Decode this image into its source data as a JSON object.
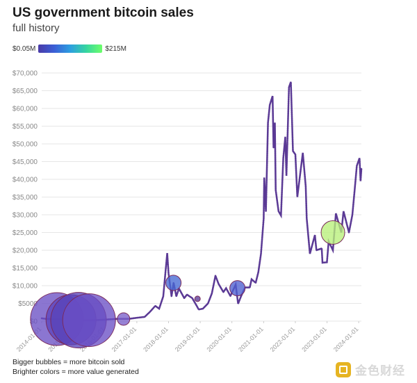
{
  "header": {
    "title": "US government bitcoin sales",
    "subtitle": "full history"
  },
  "legend": {
    "min_label": "$0.05M",
    "max_label": "$215M",
    "colors": [
      "#4a3aa8",
      "#3b5fd6",
      "#2d9ee0",
      "#36d5a0",
      "#6dff6a"
    ]
  },
  "notes": {
    "line1": "Bigger bubbles = more bitcoin sold",
    "line2": "Brighter colors = more value generated"
  },
  "watermark": {
    "text": "金色财经",
    "icon": "jinse-logo-icon"
  },
  "chart_data": {
    "type": "scatter",
    "title": "US government bitcoin sales",
    "subtitle": "full history",
    "xlabel": "",
    "ylabel": "",
    "xlim": [
      "2014-01-01",
      "2024-02-01"
    ],
    "ylim": [
      0,
      70000
    ],
    "grid": true,
    "y_ticks": [
      0,
      5000,
      10000,
      15000,
      20000,
      25000,
      30000,
      35000,
      40000,
      45000,
      50000,
      55000,
      60000,
      65000,
      70000
    ],
    "y_tick_labels": [
      "$0",
      "$5000",
      "$10,000",
      "$15,000",
      "$20,000",
      "$25,000",
      "$30,000",
      "$35,000",
      "$40,000",
      "$45,000",
      "$50,000",
      "$55,000",
      "$60,000",
      "$65,000",
      "$70,000"
    ],
    "x_tick_labels": [
      "2014-01-01",
      "2015-01-01",
      "2016-01-01",
      "2017-01-01",
      "2018-01-01",
      "2019-01-01",
      "2020-01-01",
      "2021-01-01",
      "2022-01-01",
      "2023-01-01",
      "2024-01-01"
    ],
    "price_series": {
      "name": "BTC price",
      "color": "#5b3a95",
      "points": [
        [
          "2014-01-01",
          800
        ],
        [
          "2014-03-01",
          600
        ],
        [
          "2014-06-01",
          600
        ],
        [
          "2014-09-01",
          450
        ],
        [
          "2015-01-01",
          250
        ],
        [
          "2015-06-01",
          250
        ],
        [
          "2015-11-01",
          350
        ],
        [
          "2016-01-01",
          430
        ],
        [
          "2016-06-01",
          650
        ],
        [
          "2016-10-01",
          650
        ],
        [
          "2017-01-01",
          950
        ],
        [
          "2017-04-01",
          1200
        ],
        [
          "2017-06-01",
          2600
        ],
        [
          "2017-08-01",
          4300
        ],
        [
          "2017-09-15",
          3500
        ],
        [
          "2017-11-01",
          7000
        ],
        [
          "2017-12-17",
          19200
        ],
        [
          "2018-01-01",
          13500
        ],
        [
          "2018-02-05",
          7000
        ],
        [
          "2018-03-01",
          10800
        ],
        [
          "2018-04-01",
          7000
        ],
        [
          "2018-05-01",
          9200
        ],
        [
          "2018-07-01",
          6500
        ],
        [
          "2018-08-01",
          7500
        ],
        [
          "2018-10-01",
          6500
        ],
        [
          "2018-11-20",
          4400
        ],
        [
          "2018-12-15",
          3300
        ],
        [
          "2019-02-01",
          3500
        ],
        [
          "2019-04-01",
          5000
        ],
        [
          "2019-05-15",
          7800
        ],
        [
          "2019-06-26",
          12800
        ],
        [
          "2019-08-01",
          10500
        ],
        [
          "2019-09-25",
          8200
        ],
        [
          "2019-10-26",
          9300
        ],
        [
          "2019-12-15",
          7100
        ],
        [
          "2020-02-14",
          10300
        ],
        [
          "2020-03-13",
          4900
        ],
        [
          "2020-04-15",
          7000
        ],
        [
          "2020-06-01",
          9500
        ],
        [
          "2020-07-25",
          9500
        ],
        [
          "2020-08-15",
          11800
        ],
        [
          "2020-10-01",
          10800
        ],
        [
          "2020-11-01",
          13800
        ],
        [
          "2020-12-01",
          19000
        ],
        [
          "2021-01-01",
          29000
        ],
        [
          "2021-01-08",
          40500
        ],
        [
          "2021-01-27",
          31000
        ],
        [
          "2021-02-20",
          56000
        ],
        [
          "2021-03-13",
          61000
        ],
        [
          "2021-04-14",
          63500
        ],
        [
          "2021-04-25",
          49000
        ],
        [
          "2021-05-10",
          56000
        ],
        [
          "2021-05-20",
          37000
        ],
        [
          "2021-06-22",
          31000
        ],
        [
          "2021-07-20",
          29800
        ],
        [
          "2021-08-15",
          46000
        ],
        [
          "2021-09-07",
          52000
        ],
        [
          "2021-09-20",
          41000
        ],
        [
          "2021-10-20",
          66000
        ],
        [
          "2021-11-10",
          67500
        ],
        [
          "2021-12-04",
          48000
        ],
        [
          "2022-01-01",
          47000
        ],
        [
          "2022-01-24",
          35000
        ],
        [
          "2022-03-28",
          47500
        ],
        [
          "2022-05-01",
          38000
        ],
        [
          "2022-05-12",
          29000
        ],
        [
          "2022-06-18",
          19000
        ],
        [
          "2022-08-14",
          24300
        ],
        [
          "2022-09-01",
          20000
        ],
        [
          "2022-11-01",
          20500
        ],
        [
          "2022-11-10",
          16500
        ],
        [
          "2022-12-31",
          16600
        ],
        [
          "2023-01-20",
          22500
        ],
        [
          "2023-03-10",
          20000
        ],
        [
          "2023-04-13",
          30400
        ],
        [
          "2023-06-15",
          25000
        ],
        [
          "2023-07-10",
          31000
        ],
        [
          "2023-09-11",
          25000
        ],
        [
          "2023-10-20",
          30000
        ],
        [
          "2023-11-15",
          37000
        ],
        [
          "2023-12-10",
          43800
        ],
        [
          "2024-01-10",
          46000
        ],
        [
          "2024-01-22",
          39500
        ],
        [
          "2024-02-01",
          43000
        ]
      ]
    },
    "sales": [
      {
        "date": "2014-06-25",
        "price": 580,
        "radius": 38,
        "color": "#6a4fc4"
      },
      {
        "date": "2014-12-05",
        "price": 380,
        "radius": 36,
        "color": "#5d45bd"
      },
      {
        "date": "2015-03-01",
        "price": 270,
        "radius": 40,
        "color": "#5a44ba"
      },
      {
        "date": "2015-07-01",
        "price": 280,
        "radius": 38,
        "color": "#6a50c5"
      },
      {
        "date": "2016-08-01",
        "price": 600,
        "radius": 9,
        "color": "#7a5fc9"
      },
      {
        "date": "2018-02-27",
        "price": 10800,
        "radius": 11,
        "color": "#4669d3"
      },
      {
        "date": "2018-12-01",
        "price": 6300,
        "radius": 4,
        "color": "#5b3a95"
      },
      {
        "date": "2020-03-05",
        "price": 9300,
        "radius": 11,
        "color": "#4e5fd0"
      },
      {
        "date": "2023-03-10",
        "price": 25000,
        "radius": 17,
        "color": "#b8f07a"
      }
    ]
  }
}
